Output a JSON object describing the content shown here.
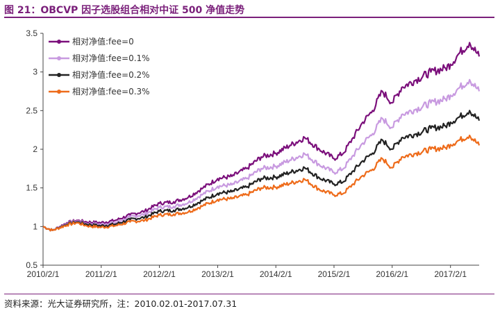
{
  "figure": {
    "title": "图 21：OBCVP 因子选股组合相对中证 500 净值走势",
    "source": "资料来源：光大证券研究所，注：2010.02.01-2017.07.31"
  },
  "chart_data": {
    "type": "line",
    "x_ticks": [
      "2010/2/1",
      "2011/2/1",
      "2012/2/1",
      "2013/2/1",
      "2014/2/1",
      "2015/2/1",
      "2016/2/1",
      "2017/2/1"
    ],
    "x_range": [
      "2010-02-01",
      "2017-07-31"
    ],
    "ylim": [
      0.5,
      3.5
    ],
    "y_ticks": [
      "0.5",
      "1",
      "1.5",
      "2",
      "2.5",
      "3",
      "3.5"
    ],
    "grid": false,
    "legend_position": "top-left",
    "series": [
      {
        "name": "相对净值:fee=0",
        "color": "#7b0f7b",
        "points": [
          [
            "2010-02-01",
            1.0
          ],
          [
            "2010-04-01",
            0.95
          ],
          [
            "2010-07-01",
            1.05
          ],
          [
            "2010-09-01",
            1.08
          ],
          [
            "2010-11-01",
            1.06
          ],
          [
            "2011-02-01",
            1.05
          ],
          [
            "2011-05-01",
            1.08
          ],
          [
            "2011-08-01",
            1.15
          ],
          [
            "2011-11-01",
            1.2
          ],
          [
            "2012-02-01",
            1.3
          ],
          [
            "2012-05-01",
            1.32
          ],
          [
            "2012-08-01",
            1.38
          ],
          [
            "2012-11-01",
            1.5
          ],
          [
            "2013-02-01",
            1.62
          ],
          [
            "2013-05-01",
            1.65
          ],
          [
            "2013-08-01",
            1.75
          ],
          [
            "2013-11-01",
            1.9
          ],
          [
            "2014-02-01",
            1.95
          ],
          [
            "2014-05-01",
            2.05
          ],
          [
            "2014-08-01",
            2.15
          ],
          [
            "2014-11-01",
            2.0
          ],
          [
            "2015-02-01",
            1.88
          ],
          [
            "2015-04-01",
            1.95
          ],
          [
            "2015-06-01",
            2.15
          ],
          [
            "2015-08-01",
            2.35
          ],
          [
            "2015-10-01",
            2.5
          ],
          [
            "2015-12-01",
            2.75
          ],
          [
            "2016-02-01",
            2.6
          ],
          [
            "2016-04-01",
            2.8
          ],
          [
            "2016-07-01",
            2.9
          ],
          [
            "2016-10-01",
            3.0
          ],
          [
            "2017-01-01",
            3.05
          ],
          [
            "2017-02-01",
            3.1
          ],
          [
            "2017-04-01",
            3.25
          ],
          [
            "2017-06-01",
            3.38
          ],
          [
            "2017-07-31",
            3.2
          ]
        ]
      },
      {
        "name": "相对净值:fee=0.1%",
        "color": "#c89ae0",
        "points": [
          [
            "2010-02-01",
            1.0
          ],
          [
            "2010-04-01",
            0.95
          ],
          [
            "2010-07-01",
            1.04
          ],
          [
            "2010-09-01",
            1.07
          ],
          [
            "2010-11-01",
            1.04
          ],
          [
            "2011-02-01",
            1.03
          ],
          [
            "2011-05-01",
            1.05
          ],
          [
            "2011-08-01",
            1.12
          ],
          [
            "2011-11-01",
            1.16
          ],
          [
            "2012-02-01",
            1.25
          ],
          [
            "2012-05-01",
            1.26
          ],
          [
            "2012-08-01",
            1.31
          ],
          [
            "2012-11-01",
            1.42
          ],
          [
            "2013-02-01",
            1.52
          ],
          [
            "2013-05-01",
            1.54
          ],
          [
            "2013-08-01",
            1.62
          ],
          [
            "2013-11-01",
            1.75
          ],
          [
            "2014-02-01",
            1.78
          ],
          [
            "2014-05-01",
            1.86
          ],
          [
            "2014-08-01",
            1.94
          ],
          [
            "2014-11-01",
            1.8
          ],
          [
            "2015-02-01",
            1.7
          ],
          [
            "2015-04-01",
            1.75
          ],
          [
            "2015-06-01",
            1.92
          ],
          [
            "2015-08-01",
            2.08
          ],
          [
            "2015-10-01",
            2.2
          ],
          [
            "2015-12-01",
            2.4
          ],
          [
            "2016-02-01",
            2.28
          ],
          [
            "2016-04-01",
            2.45
          ],
          [
            "2016-07-01",
            2.52
          ],
          [
            "2016-10-01",
            2.6
          ],
          [
            "2017-01-01",
            2.65
          ],
          [
            "2017-02-01",
            2.7
          ],
          [
            "2017-04-01",
            2.8
          ],
          [
            "2017-06-01",
            2.9
          ],
          [
            "2017-07-31",
            2.75
          ]
        ]
      },
      {
        "name": "相对净值:fee=0.2%",
        "color": "#222222",
        "points": [
          [
            "2010-02-01",
            1.0
          ],
          [
            "2010-04-01",
            0.95
          ],
          [
            "2010-07-01",
            1.03
          ],
          [
            "2010-09-01",
            1.06
          ],
          [
            "2010-11-01",
            1.03
          ],
          [
            "2011-02-01",
            1.01
          ],
          [
            "2011-05-01",
            1.03
          ],
          [
            "2011-08-01",
            1.09
          ],
          [
            "2011-11-01",
            1.12
          ],
          [
            "2012-02-01",
            1.2
          ],
          [
            "2012-05-01",
            1.21
          ],
          [
            "2012-08-01",
            1.25
          ],
          [
            "2012-11-01",
            1.34
          ],
          [
            "2013-02-01",
            1.43
          ],
          [
            "2013-05-01",
            1.45
          ],
          [
            "2013-08-01",
            1.51
          ],
          [
            "2013-11-01",
            1.62
          ],
          [
            "2014-02-01",
            1.64
          ],
          [
            "2014-05-01",
            1.7
          ],
          [
            "2014-08-01",
            1.76
          ],
          [
            "2014-11-01",
            1.63
          ],
          [
            "2015-02-01",
            1.55
          ],
          [
            "2015-04-01",
            1.58
          ],
          [
            "2015-06-01",
            1.72
          ],
          [
            "2015-08-01",
            1.85
          ],
          [
            "2015-10-01",
            1.95
          ],
          [
            "2015-12-01",
            2.12
          ],
          [
            "2016-02-01",
            2.0
          ],
          [
            "2016-04-01",
            2.15
          ],
          [
            "2016-07-01",
            2.2
          ],
          [
            "2016-10-01",
            2.27
          ],
          [
            "2017-01-01",
            2.3
          ],
          [
            "2017-02-01",
            2.35
          ],
          [
            "2017-04-01",
            2.42
          ],
          [
            "2017-06-01",
            2.5
          ],
          [
            "2017-07-31",
            2.37
          ]
        ]
      },
      {
        "name": "相对净值:fee=0.3%",
        "color": "#ee6b1a",
        "points": [
          [
            "2010-02-01",
            1.0
          ],
          [
            "2010-04-01",
            0.95
          ],
          [
            "2010-07-01",
            1.02
          ],
          [
            "2010-09-01",
            1.05
          ],
          [
            "2010-11-01",
            1.01
          ],
          [
            "2011-02-01",
            0.99
          ],
          [
            "2011-05-01",
            1.01
          ],
          [
            "2011-08-01",
            1.06
          ],
          [
            "2011-11-01",
            1.08
          ],
          [
            "2012-02-01",
            1.15
          ],
          [
            "2012-05-01",
            1.16
          ],
          [
            "2012-08-01",
            1.19
          ],
          [
            "2012-11-01",
            1.27
          ],
          [
            "2013-02-01",
            1.35
          ],
          [
            "2013-05-01",
            1.36
          ],
          [
            "2013-08-01",
            1.41
          ],
          [
            "2013-11-01",
            1.5
          ],
          [
            "2014-02-01",
            1.51
          ],
          [
            "2014-05-01",
            1.56
          ],
          [
            "2014-08-01",
            1.61
          ],
          [
            "2014-11-01",
            1.48
          ],
          [
            "2015-02-01",
            1.41
          ],
          [
            "2015-04-01",
            1.43
          ],
          [
            "2015-06-01",
            1.55
          ],
          [
            "2015-08-01",
            1.66
          ],
          [
            "2015-10-01",
            1.74
          ],
          [
            "2015-12-01",
            1.88
          ],
          [
            "2016-02-01",
            1.76
          ],
          [
            "2016-04-01",
            1.9
          ],
          [
            "2016-07-01",
            1.95
          ],
          [
            "2016-10-01",
            2.0
          ],
          [
            "2017-01-01",
            2.02
          ],
          [
            "2017-02-01",
            2.06
          ],
          [
            "2017-04-01",
            2.12
          ],
          [
            "2017-06-01",
            2.18
          ],
          [
            "2017-07-31",
            2.05
          ]
        ]
      }
    ]
  }
}
